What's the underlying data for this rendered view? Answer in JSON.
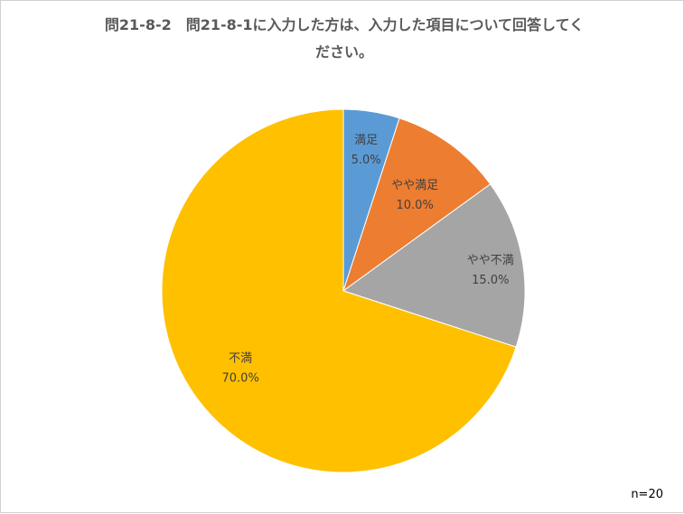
{
  "chart_data": {
    "type": "pie",
    "title_line1": "問21-8-2　問21-8-1に入力した方は、入力した項目について回答してく",
    "title_line2": "ださい。",
    "categories": [
      "満足",
      "やや満足",
      "やや不満",
      "不満"
    ],
    "values": [
      5.0,
      10.0,
      15.0,
      70.0
    ],
    "value_labels": [
      "5.0%",
      "10.0%",
      "15.0%",
      "70.0%"
    ],
    "colors": [
      "#5B9BD5",
      "#ED7D31",
      "#A5A5A5",
      "#FFC000"
    ],
    "start": "top",
    "direction": "clockwise",
    "legend": "none"
  },
  "footnote": "n=20"
}
